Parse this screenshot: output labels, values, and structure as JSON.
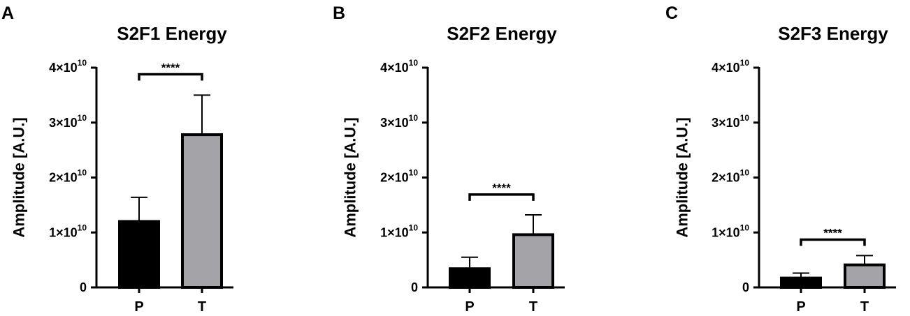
{
  "chart_data": [
    {
      "panel": "A",
      "type": "bar",
      "title": "S2F1 Energy",
      "ylabel": "Amplitude [A.U.]",
      "ylim": [
        0,
        40000000000
      ],
      "yticks": [
        0,
        10000000000,
        20000000000,
        30000000000,
        40000000000
      ],
      "ytick_labels": [
        {
          "base": "0",
          "exp": ""
        },
        {
          "base": "1×10",
          "exp": "10"
        },
        {
          "base": "2×10",
          "exp": "10"
        },
        {
          "base": "3×10",
          "exp": "10"
        },
        {
          "base": "4×10",
          "exp": "10"
        }
      ],
      "categories": [
        "P",
        "T"
      ],
      "values": [
        12000000000,
        27800000000
      ],
      "errors": [
        4400000000,
        7200000000
      ],
      "bar_colors": [
        "#000000",
        "#a3a3a8"
      ],
      "significance": {
        "from": "P",
        "to": "T",
        "label": "****",
        "at": 38800000000
      }
    },
    {
      "panel": "B",
      "type": "bar",
      "title": "S2F2 Energy",
      "ylabel": "Amplitude [A.U.]",
      "ylim": [
        0,
        40000000000
      ],
      "yticks": [
        0,
        10000000000,
        20000000000,
        30000000000,
        40000000000
      ],
      "ytick_labels": [
        {
          "base": "0",
          "exp": ""
        },
        {
          "base": "1×10",
          "exp": "10"
        },
        {
          "base": "2×10",
          "exp": "10"
        },
        {
          "base": "3×10",
          "exp": "10"
        },
        {
          "base": "4×10",
          "exp": "10"
        }
      ],
      "categories": [
        "P",
        "T"
      ],
      "values": [
        3400000000,
        9600000000
      ],
      "errors": [
        2100000000,
        3600000000
      ],
      "bar_colors": [
        "#000000",
        "#a3a3a8"
      ],
      "significance": {
        "from": "P",
        "to": "T",
        "label": "****",
        "at": 16900000000
      }
    },
    {
      "panel": "C",
      "type": "bar",
      "title": "S2F3 Energy",
      "ylabel": "Amplitude [A.U.]",
      "ylim": [
        0,
        40000000000
      ],
      "yticks": [
        0,
        10000000000,
        20000000000,
        30000000000,
        40000000000
      ],
      "ytick_labels": [
        {
          "base": "0",
          "exp": ""
        },
        {
          "base": "1×10",
          "exp": "10"
        },
        {
          "base": "2×10",
          "exp": "10"
        },
        {
          "base": "3×10",
          "exp": "10"
        },
        {
          "base": "4×10",
          "exp": "10"
        }
      ],
      "categories": [
        "P",
        "T"
      ],
      "values": [
        1700000000,
        4100000000
      ],
      "errors": [
        900000000,
        1700000000
      ],
      "bar_colors": [
        "#000000",
        "#a3a3a8"
      ],
      "significance": {
        "from": "P",
        "to": "T",
        "label": "****",
        "at": 8700000000
      }
    }
  ]
}
